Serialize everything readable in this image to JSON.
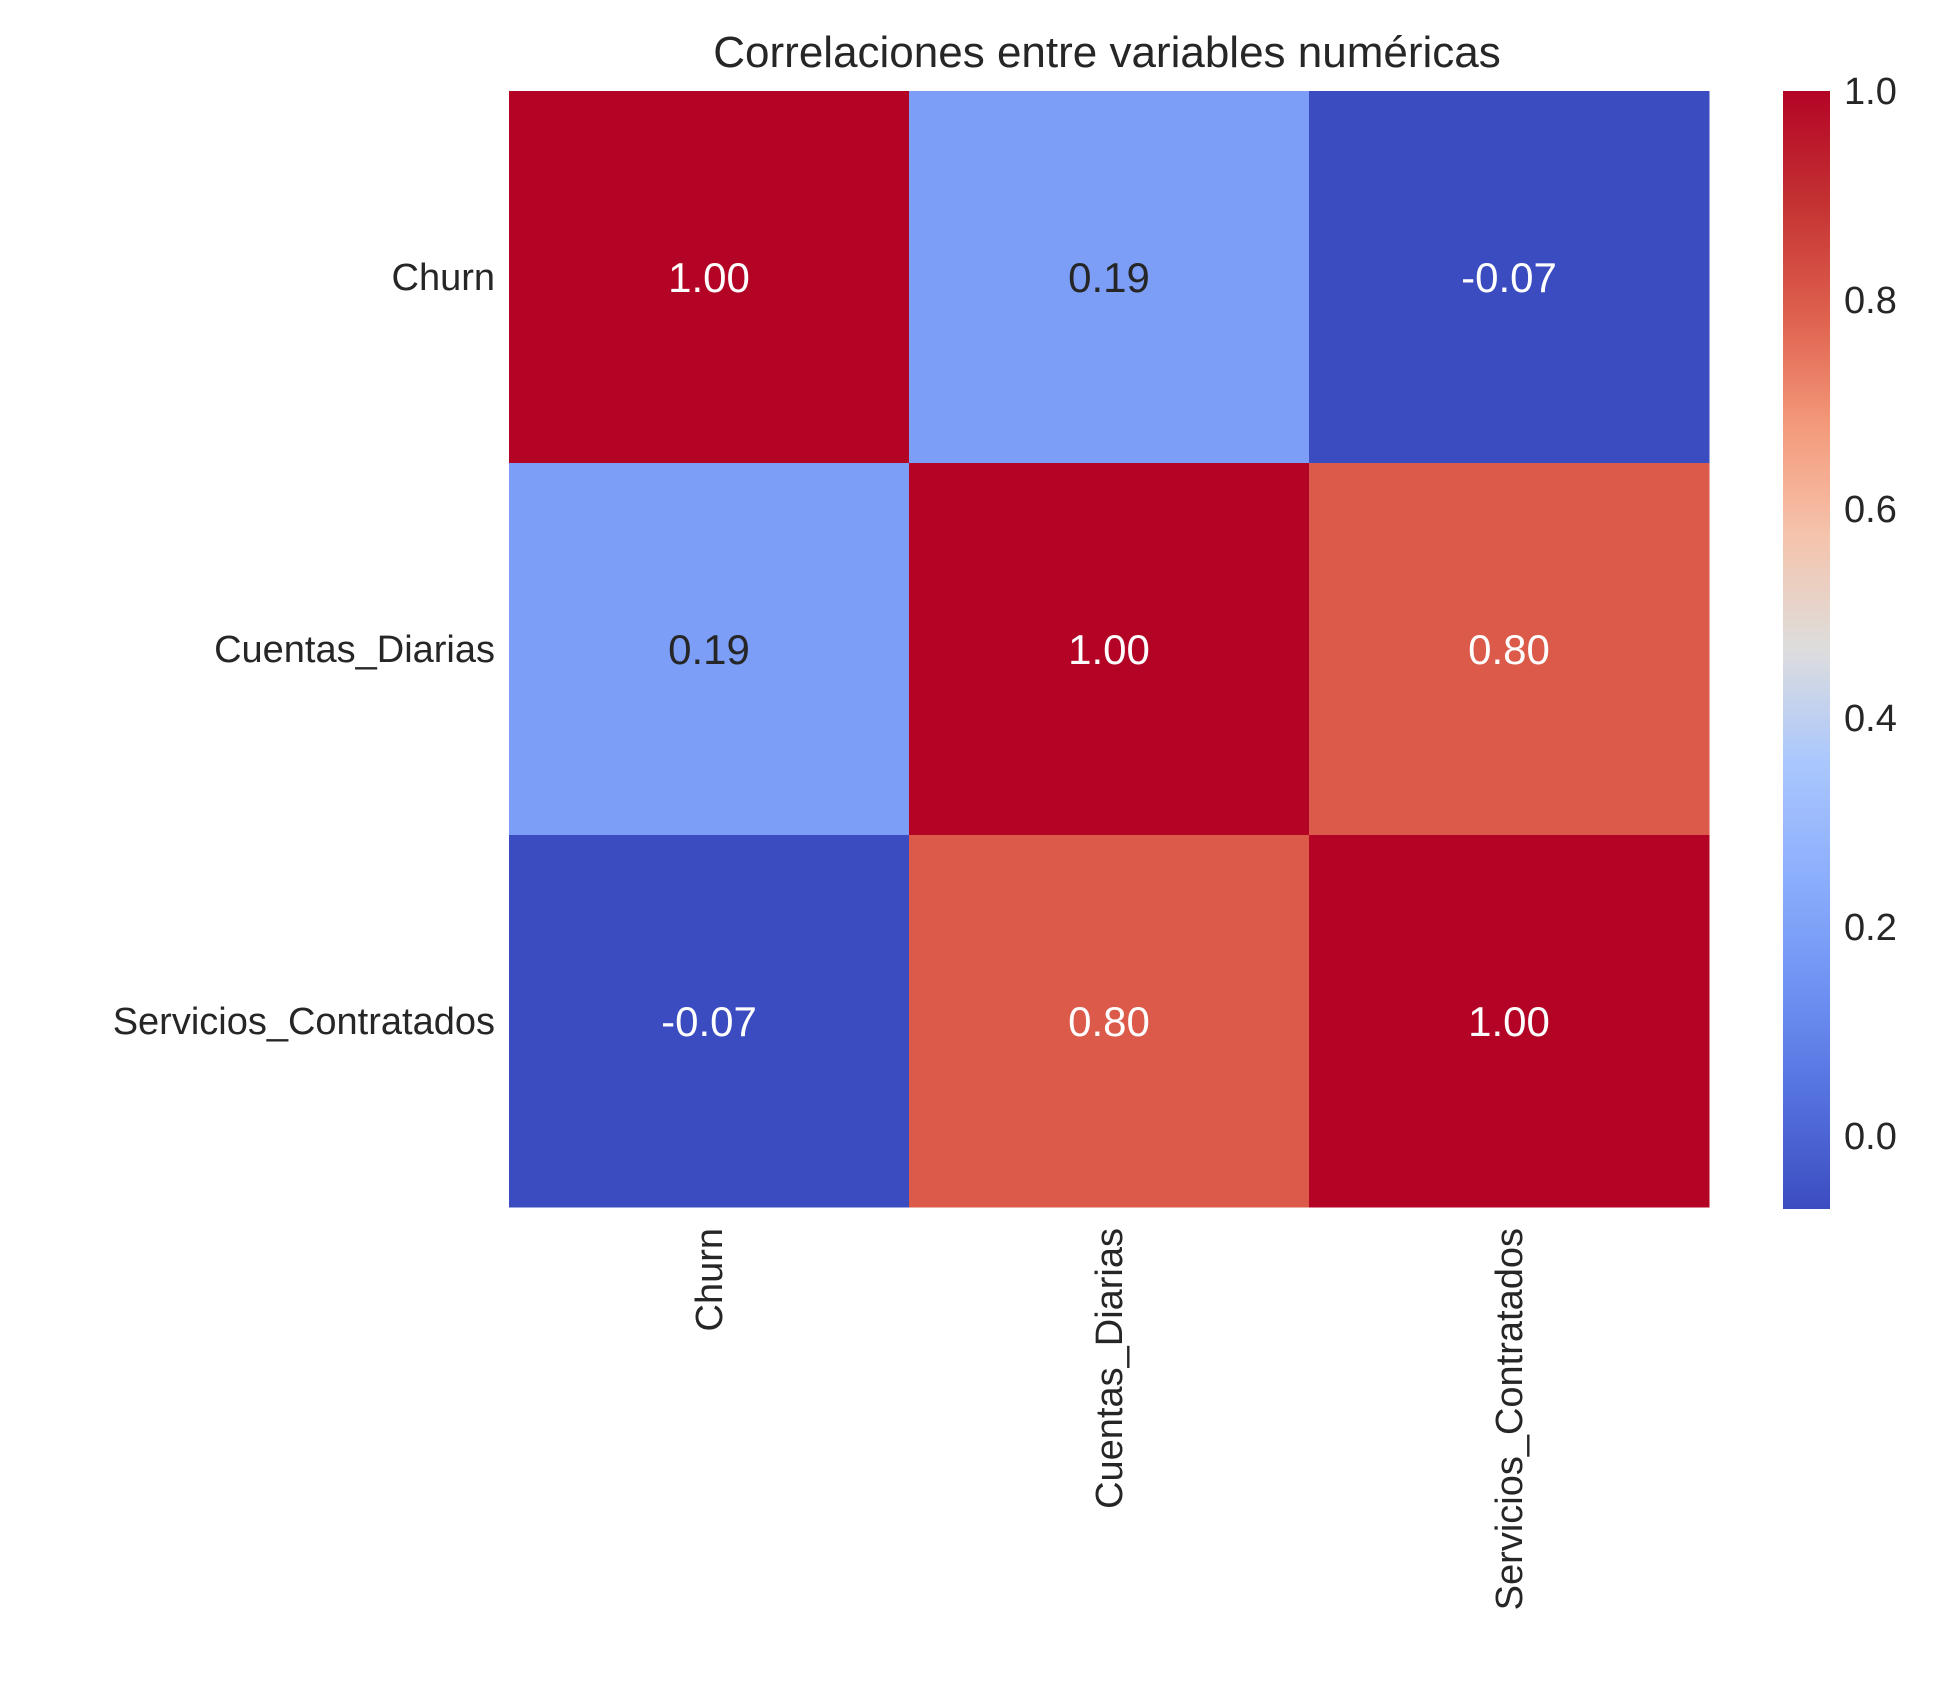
{
  "chart_data": {
    "type": "heatmap",
    "title": "Correlaciones entre variables numéricas",
    "row_labels": [
      "Churn",
      "Cuentas_Diarias",
      "Servicios_Contratados"
    ],
    "col_labels": [
      "Churn",
      "Cuentas_Diarias",
      "Servicios_Contratados"
    ],
    "values": [
      [
        1.0,
        0.19,
        -0.07
      ],
      [
        0.19,
        1.0,
        0.8
      ],
      [
        -0.07,
        0.8,
        1.0
      ]
    ],
    "value_labels": [
      [
        "1.00",
        "0.19",
        "-0.07"
      ],
      [
        "0.19",
        "1.00",
        "0.80"
      ],
      [
        "-0.07",
        "0.80",
        "1.00"
      ]
    ],
    "colormap": "coolwarm",
    "colorbar": {
      "vmin": -0.07,
      "vmax": 1.0,
      "ticks": [
        0.0,
        0.2,
        0.4,
        0.6,
        0.8,
        1.0
      ],
      "tick_labels": [
        "0.0",
        "0.2",
        "0.4",
        "0.6",
        "0.8",
        "1.0"
      ]
    }
  }
}
